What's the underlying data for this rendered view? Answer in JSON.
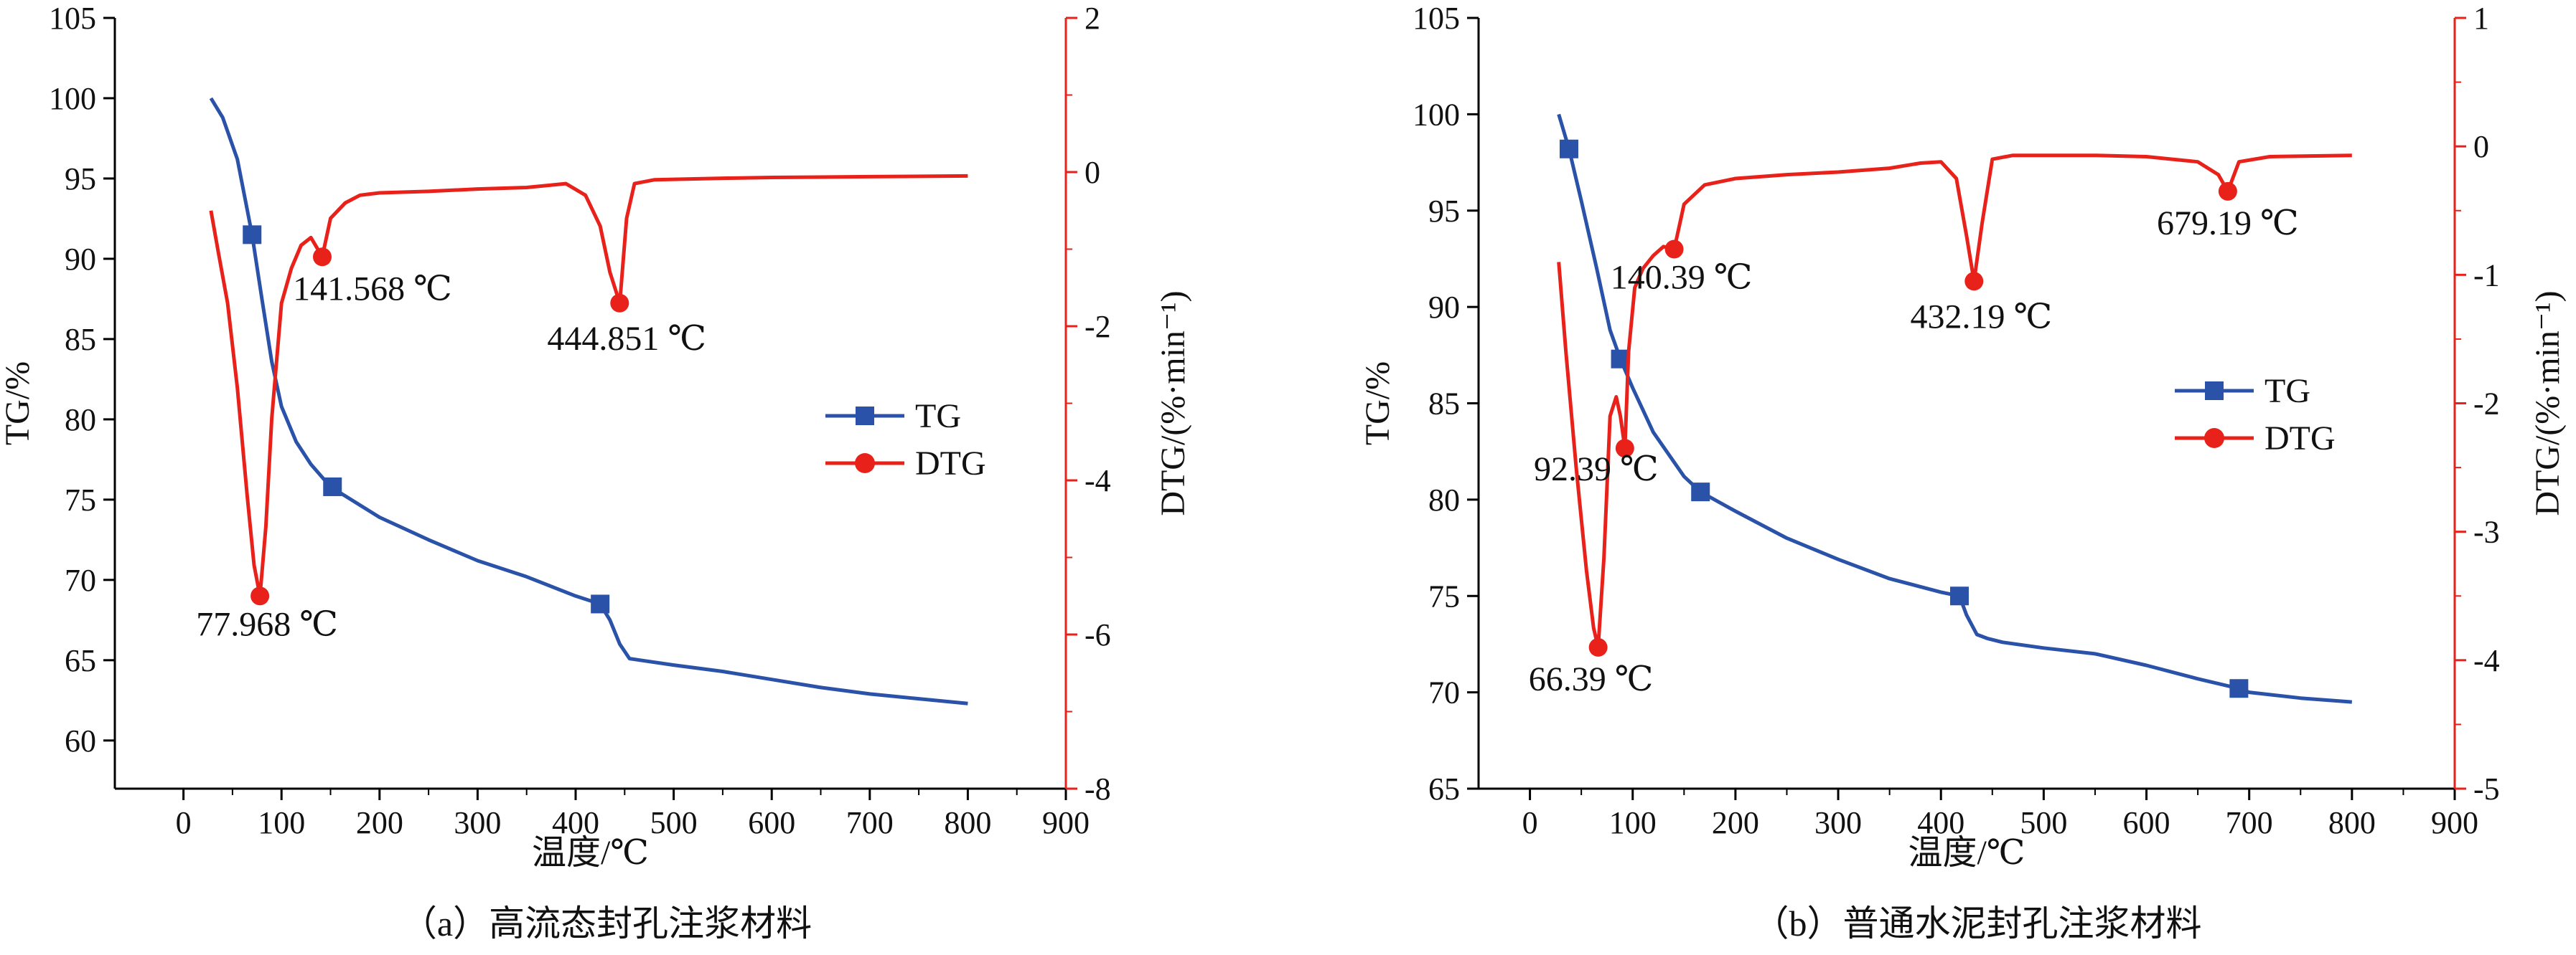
{
  "colors": {
    "tg": "#2a52a8",
    "dtg": "#e8221a",
    "axis": "#000000",
    "dtg_axis": "#e8221a"
  },
  "chart_data": [
    {
      "type": "line",
      "caption": "（a）高流态封孔注浆材料",
      "xlabel": "温度/℃",
      "ylabel_left": "TG/%",
      "ylabel_right": "DTG/(%·min⁻¹)",
      "xlim": [
        -70,
        900
      ],
      "xticks": [
        0,
        100,
        200,
        300,
        400,
        500,
        600,
        700,
        800,
        900
      ],
      "ylim_left": [
        57,
        105
      ],
      "yticks_left": [
        60,
        65,
        70,
        75,
        80,
        85,
        90,
        95,
        100,
        105
      ],
      "ylim_right": [
        -8,
        2
      ],
      "yticks_right": [
        -8,
        -6,
        -4,
        -2,
        0,
        2
      ],
      "grid": false,
      "legend": {
        "position": "middle-right",
        "entries": [
          "TG",
          "DTG"
        ]
      },
      "series": [
        {
          "name": "TG",
          "axis": "left",
          "marker": "square",
          "x": [
            28,
            40,
            55,
            70,
            80,
            90,
            100,
            115,
            130,
            150,
            200,
            250,
            300,
            350,
            400,
            425,
            435,
            445,
            455,
            500,
            550,
            600,
            650,
            700,
            750,
            800
          ],
          "y": [
            100,
            98.8,
            96.2,
            91.5,
            87.5,
            83.6,
            80.8,
            78.6,
            77.2,
            75.8,
            73.9,
            72.5,
            71.2,
            70.2,
            69.0,
            68.5,
            67.5,
            66.0,
            65.1,
            64.7,
            64.3,
            63.8,
            63.3,
            62.9,
            62.6,
            62.3
          ],
          "markers": [
            [
              70,
              91.5
            ],
            [
              152,
              75.8
            ],
            [
              425,
              68.5
            ]
          ]
        },
        {
          "name": "DTG",
          "axis": "right",
          "marker": "circle",
          "x": [
            28,
            35,
            45,
            55,
            65,
            72,
            78,
            84,
            90,
            100,
            110,
            120,
            130,
            141.6,
            150,
            165,
            180,
            200,
            250,
            300,
            350,
            390,
            410,
            425,
            435,
            445,
            452,
            460,
            480,
            550,
            600,
            700,
            800
          ],
          "y": [
            -0.5,
            -1.0,
            -1.7,
            -2.8,
            -4.2,
            -5.1,
            -5.5,
            -4.6,
            -3.2,
            -1.7,
            -1.25,
            -0.95,
            -0.85,
            -1.1,
            -0.6,
            -0.4,
            -0.3,
            -0.27,
            -0.25,
            -0.22,
            -0.2,
            -0.15,
            -0.3,
            -0.7,
            -1.3,
            -1.7,
            -0.6,
            -0.15,
            -0.1,
            -0.08,
            -0.07,
            -0.06,
            -0.05
          ]
        }
      ],
      "annotations": [
        {
          "text": "77.968 ℃",
          "x": 77.968,
          "series": "DTG",
          "y": -5.5
        },
        {
          "text": "141.568 ℃",
          "x": 141.568,
          "series": "DTG",
          "y": -1.1
        },
        {
          "text": "444.851 ℃",
          "x": 444.851,
          "series": "DTG",
          "y": -1.7
        }
      ]
    },
    {
      "type": "line",
      "caption": "（b）普通水泥封孔注浆材料",
      "xlabel": "温度/℃",
      "ylabel_left": "TG/%",
      "ylabel_right": "DTG/(%·min⁻¹)",
      "xlim": [
        -50,
        900
      ],
      "xticks": [
        0,
        100,
        200,
        300,
        400,
        500,
        600,
        700,
        800,
        900
      ],
      "ylim_left": [
        65,
        105
      ],
      "yticks_left": [
        65,
        70,
        75,
        80,
        85,
        90,
        95,
        100,
        105
      ],
      "ylim_right": [
        -5,
        1
      ],
      "yticks_right": [
        -5,
        -4,
        -3,
        -2,
        -1,
        0,
        1
      ],
      "grid": false,
      "legend": {
        "position": "middle-right",
        "entries": [
          "TG",
          "DTG"
        ]
      },
      "series": [
        {
          "name": "TG",
          "axis": "left",
          "marker": "square",
          "x": [
            28,
            38,
            50,
            65,
            78,
            88,
            100,
            120,
            150,
            166,
            200,
            250,
            300,
            350,
            400,
            418,
            425,
            435,
            445,
            460,
            500,
            550,
            600,
            650,
            690,
            700,
            750,
            800
          ],
          "y": [
            100,
            98.2,
            95.5,
            92.0,
            88.8,
            87.3,
            85.8,
            83.5,
            81.2,
            80.4,
            79.4,
            78.0,
            76.9,
            75.9,
            75.2,
            75.0,
            74.0,
            73.0,
            72.8,
            72.6,
            72.3,
            72.0,
            71.4,
            70.7,
            70.2,
            70.0,
            69.7,
            69.5
          ],
          "markers": [
            [
              38,
              98.2
            ],
            [
              88,
              87.3
            ],
            [
              166,
              80.4
            ],
            [
              418,
              75.0
            ],
            [
              690,
              70.2
            ]
          ]
        },
        {
          "name": "DTG",
          "axis": "right",
          "marker": "circle",
          "x": [
            28,
            35,
            45,
            55,
            62,
            66.4,
            72,
            78,
            84,
            88,
            92.4,
            96,
            102,
            110,
            120,
            130,
            140.4,
            150,
            170,
            200,
            250,
            300,
            350,
            380,
            400,
            415,
            425,
            432.2,
            440,
            450,
            470,
            550,
            600,
            650,
            670,
            679.2,
            690,
            720,
            800
          ],
          "y": [
            -0.9,
            -1.6,
            -2.5,
            -3.3,
            -3.75,
            -3.9,
            -3.2,
            -2.1,
            -1.95,
            -2.1,
            -2.35,
            -1.6,
            -1.1,
            -0.95,
            -0.85,
            -0.78,
            -0.8,
            -0.45,
            -0.3,
            -0.25,
            -0.22,
            -0.2,
            -0.17,
            -0.13,
            -0.12,
            -0.25,
            -0.7,
            -1.05,
            -0.6,
            -0.1,
            -0.07,
            -0.07,
            -0.08,
            -0.12,
            -0.22,
            -0.35,
            -0.12,
            -0.08,
            -0.07
          ]
        }
      ],
      "annotations": [
        {
          "text": "66.39 ℃",
          "x": 66.39,
          "series": "DTG",
          "y": -3.9
        },
        {
          "text": "92.39 ℃",
          "x": 92.39,
          "series": "DTG",
          "y": -2.35
        },
        {
          "text": "140.39 ℃",
          "x": 140.39,
          "series": "DTG",
          "y": -0.8
        },
        {
          "text": "432.19 ℃",
          "x": 432.19,
          "series": "DTG",
          "y": -1.05
        },
        {
          "text": "679.19 ℃",
          "x": 679.19,
          "series": "DTG",
          "y": -0.35
        }
      ]
    }
  ]
}
